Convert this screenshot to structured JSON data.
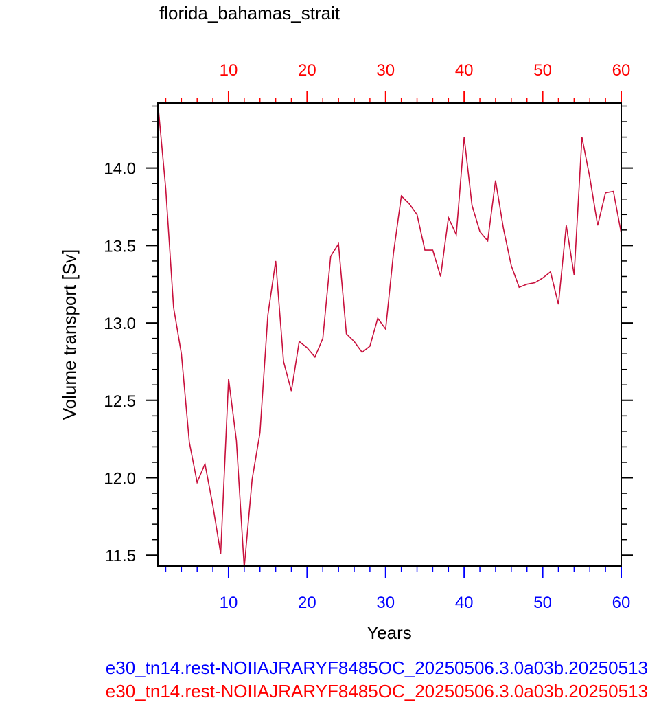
{
  "chart_data": {
    "type": "line",
    "title": "florida_bahamas_strait",
    "xlabel": "Years",
    "ylabel": "Volume transport [Sv]",
    "xlim": [
      1,
      60
    ],
    "ylim": [
      11.43,
      14.42
    ],
    "bottom_xticks": [
      "10",
      "20",
      "30",
      "40",
      "50",
      "60"
    ],
    "top_xticks": [
      "10",
      "20",
      "30",
      "40",
      "50",
      "60"
    ],
    "yticks": [
      "11.5",
      "12.0",
      "12.5",
      "13.0",
      "13.5",
      "14.0"
    ],
    "bottom_axis_color": "#0000ff",
    "top_axis_color": "#ff0000",
    "series": [
      {
        "color": "#c8103c",
        "x": [
          1,
          2,
          3,
          4,
          5,
          6,
          7,
          8,
          9,
          10,
          11,
          12,
          13,
          14,
          15,
          16,
          17,
          18,
          19,
          20,
          21,
          22,
          23,
          24,
          25,
          26,
          27,
          28,
          29,
          30,
          31,
          32,
          33,
          34,
          35,
          36,
          37,
          38,
          39,
          40,
          41,
          42,
          43,
          44,
          45,
          46,
          47,
          48,
          49,
          50,
          51,
          52,
          53,
          54,
          55,
          56,
          57,
          58,
          59,
          60
        ],
        "values": [
          14.42,
          13.87,
          13.1,
          12.8,
          12.23,
          11.97,
          12.09,
          11.82,
          11.51,
          12.64,
          12.24,
          11.42,
          11.99,
          12.29,
          13.05,
          13.4,
          12.75,
          12.56,
          12.88,
          12.84,
          12.78,
          12.9,
          13.43,
          13.51,
          12.93,
          12.88,
          12.81,
          12.85,
          13.03,
          12.96,
          13.45,
          13.82,
          13.77,
          13.7,
          13.47,
          13.47,
          13.3,
          13.68,
          13.57,
          14.2,
          13.76,
          13.59,
          13.53,
          13.92,
          13.61,
          13.37,
          13.23,
          13.25,
          13.26,
          13.29,
          13.33,
          13.12,
          13.63,
          13.31,
          14.2,
          13.94,
          13.63,
          13.84,
          13.85,
          13.58
        ]
      }
    ]
  },
  "captions": [
    {
      "text": "e30_tn14.rest-NOIIAJRARYF8485OC_20250506.3.0a03b.20250513",
      "color": "#0000ff"
    },
    {
      "text": "e30_tn14.rest-NOIIAJRARYF8485OC_20250506.3.0a03b.20250513",
      "color": "#ff0000"
    }
  ]
}
